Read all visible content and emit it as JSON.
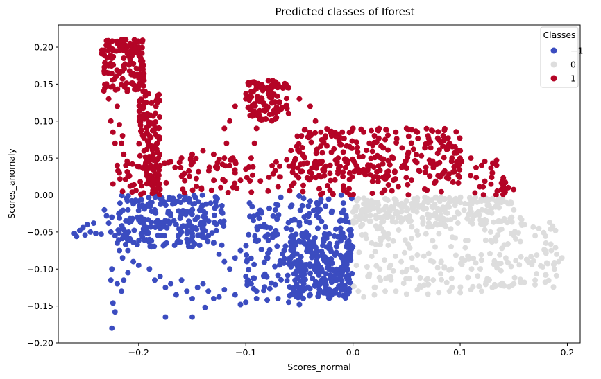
{
  "chart_data": {
    "type": "scatter",
    "title": "Predicted classes of Iforest",
    "xlabel": "Scores_normal",
    "ylabel": "Scores_anomaly",
    "xlim": [
      -0.275,
      0.212
    ],
    "ylim": [
      -0.2,
      0.23
    ],
    "xticks": [
      {
        "value": -0.2,
        "label": "−0.2"
      },
      {
        "value": -0.1,
        "label": "−0.1"
      },
      {
        "value": 0.0,
        "label": "0.0"
      },
      {
        "value": 0.1,
        "label": "0.1"
      },
      {
        "value": 0.2,
        "label": "0.2"
      }
    ],
    "yticks": [
      {
        "value": -0.2,
        "label": "−0.20"
      },
      {
        "value": -0.15,
        "label": "−0.15"
      },
      {
        "value": -0.1,
        "label": "−0.10"
      },
      {
        "value": -0.05,
        "label": "−0.05"
      },
      {
        "value": 0.0,
        "label": "0.00"
      },
      {
        "value": 0.05,
        "label": "0.05"
      },
      {
        "value": 0.1,
        "label": "0.10"
      },
      {
        "value": 0.15,
        "label": "0.15"
      },
      {
        "value": 0.2,
        "label": "0.20"
      }
    ],
    "grid": false,
    "legend": {
      "title": "Classes",
      "placement": "top-right",
      "entries": [
        {
          "label": "−1",
          "color": "#3b4cc0"
        },
        {
          "label": "0",
          "color": "#dddddd"
        },
        {
          "label": "1",
          "color": "#b40426"
        }
      ]
    },
    "series": [
      {
        "name": "−1",
        "color": "#3b4cc0",
        "points": [
          [
            -0.26,
            -0.052
          ],
          [
            -0.258,
            -0.056
          ],
          [
            -0.255,
            -0.048
          ],
          [
            -0.252,
            -0.044
          ],
          [
            -0.25,
            -0.054
          ],
          [
            -0.248,
            -0.04
          ],
          [
            -0.245,
            -0.05
          ],
          [
            -0.242,
            -0.038
          ],
          [
            -0.24,
            -0.052
          ],
          [
            -0.235,
            -0.053
          ],
          [
            -0.232,
            -0.02
          ],
          [
            -0.23,
            -0.028
          ],
          [
            -0.228,
            -0.038
          ],
          [
            -0.226,
            -0.05
          ],
          [
            -0.225,
            -0.03
          ],
          [
            -0.222,
            -0.055
          ],
          [
            -0.22,
            -0.065
          ],
          [
            -0.218,
            -0.075
          ],
          [
            -0.215,
            -0.045
          ],
          [
            -0.212,
            -0.035
          ],
          [
            -0.21,
            -0.02
          ],
          [
            -0.205,
            -0.012
          ],
          [
            -0.2,
            -0.008
          ],
          [
            -0.198,
            -0.03
          ],
          [
            -0.195,
            -0.04
          ],
          [
            -0.192,
            -0.052
          ],
          [
            -0.19,
            -0.06
          ],
          [
            -0.188,
            -0.07
          ],
          [
            -0.185,
            -0.02
          ],
          [
            -0.182,
            -0.035
          ],
          [
            -0.18,
            -0.045
          ],
          [
            -0.176,
            -0.055
          ],
          [
            -0.174,
            -0.065
          ],
          [
            -0.17,
            -0.028
          ],
          [
            -0.165,
            -0.04
          ],
          [
            -0.16,
            -0.05
          ],
          [
            -0.155,
            -0.06
          ],
          [
            -0.15,
            -0.07
          ],
          [
            -0.145,
            -0.03
          ],
          [
            -0.14,
            -0.045
          ],
          [
            -0.135,
            -0.055
          ],
          [
            -0.13,
            -0.065
          ],
          [
            -0.125,
            -0.08
          ],
          [
            -0.12,
            -0.09
          ],
          [
            -0.115,
            -0.1
          ],
          [
            -0.11,
            -0.085
          ],
          [
            -0.105,
            -0.075
          ],
          [
            -0.1,
            -0.11
          ],
          [
            -0.095,
            -0.12
          ],
          [
            -0.09,
            -0.13
          ],
          [
            -0.225,
            -0.1
          ],
          [
            -0.22,
            -0.12
          ],
          [
            -0.216,
            -0.13
          ],
          [
            -0.214,
            -0.115
          ],
          [
            -0.21,
            -0.105
          ],
          [
            -0.2,
            -0.095
          ],
          [
            -0.19,
            -0.1
          ],
          [
            -0.185,
            -0.115
          ],
          [
            -0.18,
            -0.11
          ],
          [
            -0.175,
            -0.125
          ],
          [
            -0.17,
            -0.12
          ],
          [
            -0.165,
            -0.135
          ],
          [
            -0.16,
            -0.115
          ],
          [
            -0.155,
            -0.13
          ],
          [
            -0.15,
            -0.14
          ],
          [
            -0.145,
            -0.125
          ],
          [
            -0.14,
            -0.12
          ],
          [
            -0.135,
            -0.13
          ],
          [
            -0.13,
            -0.14
          ],
          [
            -0.125,
            -0.138
          ],
          [
            -0.12,
            -0.128
          ],
          [
            -0.11,
            -0.135
          ],
          [
            -0.105,
            -0.148
          ],
          [
            -0.1,
            -0.145
          ],
          [
            -0.09,
            -0.14
          ],
          [
            -0.08,
            -0.142
          ],
          [
            -0.07,
            -0.14
          ],
          [
            -0.06,
            -0.145
          ],
          [
            -0.05,
            -0.148
          ],
          [
            -0.04,
            -0.135
          ],
          [
            -0.224,
            -0.146
          ],
          [
            -0.222,
            -0.158
          ],
          [
            -0.225,
            -0.18
          ],
          [
            -0.175,
            -0.165
          ],
          [
            -0.15,
            -0.165
          ],
          [
            -0.138,
            -0.152
          ],
          [
            -0.226,
            -0.115
          ],
          [
            -0.21,
            -0.075
          ],
          [
            -0.215,
            -0.085
          ],
          [
            -0.205,
            -0.09
          ]
        ],
        "dense_regions": [
          {
            "x": [
              -0.22,
              -0.12
            ],
            "y": [
              -0.07,
              0.0
            ]
          },
          {
            "x": [
              -0.1,
              0.0
            ],
            "y": [
              -0.13,
              0.0
            ]
          },
          {
            "x": [
              -0.06,
              0.0
            ],
            "y": [
              -0.14,
              -0.05
            ]
          }
        ]
      },
      {
        "name": "0",
        "color": "#dddddd",
        "points": [
          [
            0.005,
            -0.005
          ],
          [
            0.01,
            -0.012
          ],
          [
            0.015,
            -0.02
          ],
          [
            0.02,
            -0.01
          ],
          [
            0.03,
            -0.005
          ],
          [
            0.04,
            -0.012
          ],
          [
            0.05,
            -0.008
          ],
          [
            0.06,
            -0.004
          ],
          [
            0.07,
            -0.01
          ],
          [
            0.08,
            -0.006
          ],
          [
            0.09,
            -0.004
          ],
          [
            0.1,
            -0.01
          ],
          [
            0.11,
            -0.006
          ],
          [
            0.12,
            -0.008
          ],
          [
            0.13,
            -0.005
          ],
          [
            0.14,
            -0.008
          ],
          [
            0.145,
            -0.012
          ],
          [
            0.15,
            -0.02
          ],
          [
            0.16,
            -0.04
          ],
          [
            0.17,
            -0.055
          ],
          [
            0.18,
            -0.065
          ],
          [
            0.185,
            -0.075
          ],
          [
            0.19,
            -0.08
          ],
          [
            0.192,
            -0.09
          ],
          [
            0.195,
            -0.085
          ],
          [
            0.188,
            -0.1
          ],
          [
            0.18,
            -0.108
          ],
          [
            0.17,
            -0.115
          ],
          [
            0.16,
            -0.118
          ],
          [
            0.15,
            -0.12
          ],
          [
            0.14,
            -0.122
          ],
          [
            0.13,
            -0.125
          ],
          [
            0.12,
            -0.13
          ],
          [
            0.11,
            -0.128
          ],
          [
            0.1,
            -0.132
          ],
          [
            0.09,
            -0.13
          ],
          [
            0.08,
            -0.132
          ],
          [
            0.07,
            -0.134
          ],
          [
            0.06,
            -0.128
          ],
          [
            0.05,
            -0.134
          ],
          [
            0.04,
            -0.13
          ],
          [
            0.03,
            -0.13
          ],
          [
            0.02,
            -0.135
          ],
          [
            0.01,
            -0.138
          ],
          [
            0.005,
            -0.13
          ],
          [
            0.015,
            -0.11
          ],
          [
            0.025,
            -0.1
          ],
          [
            0.035,
            -0.095
          ],
          [
            0.045,
            -0.09
          ],
          [
            0.055,
            -0.085
          ]
        ],
        "dense_regions": [
          {
            "x": [
              0.0,
              0.19
            ],
            "y": [
              -0.125,
              -0.03
            ]
          },
          {
            "x": [
              0.0,
              0.15
            ],
            "y": [
              -0.04,
              -0.003
            ]
          }
        ]
      },
      {
        "name": "1",
        "color": "#b40426",
        "points": [
          [
            -0.232,
            0.165
          ],
          [
            -0.23,
            0.15
          ],
          [
            -0.228,
            0.175
          ],
          [
            -0.225,
            0.185
          ],
          [
            -0.222,
            0.195
          ],
          [
            -0.22,
            0.205
          ],
          [
            -0.216,
            0.21
          ],
          [
            -0.212,
            0.21
          ],
          [
            -0.208,
            0.205
          ],
          [
            -0.204,
            0.21
          ],
          [
            -0.2,
            0.2
          ],
          [
            -0.198,
            0.185
          ],
          [
            -0.196,
            0.17
          ],
          [
            -0.195,
            0.155
          ],
          [
            -0.194,
            0.14
          ],
          [
            -0.193,
            0.125
          ],
          [
            -0.192,
            0.11
          ],
          [
            -0.19,
            0.095
          ],
          [
            -0.19,
            0.08
          ],
          [
            -0.188,
            0.065
          ],
          [
            -0.186,
            0.05
          ],
          [
            -0.186,
            0.035
          ],
          [
            -0.185,
            0.02
          ],
          [
            -0.184,
            0.005
          ],
          [
            -0.228,
            0.13
          ],
          [
            -0.226,
            0.1
          ],
          [
            -0.224,
            0.085
          ],
          [
            -0.222,
            0.07
          ],
          [
            -0.22,
            0.12
          ],
          [
            -0.218,
            0.095
          ],
          [
            -0.216,
            0.07
          ],
          [
            -0.214,
            0.055
          ],
          [
            -0.212,
            0.04
          ],
          [
            -0.21,
            0.025
          ],
          [
            -0.208,
            0.012
          ],
          [
            -0.206,
            0.004
          ],
          [
            -0.224,
            0.015
          ],
          [
            -0.22,
            0.04
          ],
          [
            -0.218,
            0.03
          ],
          [
            -0.215,
            0.08
          ],
          [
            -0.18,
            0.04
          ],
          [
            -0.17,
            0.045
          ],
          [
            -0.16,
            0.05
          ],
          [
            -0.15,
            0.055
          ],
          [
            -0.14,
            0.06
          ],
          [
            -0.13,
            0.055
          ],
          [
            -0.12,
            0.05
          ],
          [
            -0.115,
            0.04
          ],
          [
            -0.11,
            0.03
          ],
          [
            -0.105,
            0.02
          ],
          [
            -0.1,
            0.035
          ],
          [
            -0.095,
            0.05
          ],
          [
            -0.092,
            0.07
          ],
          [
            -0.09,
            0.09
          ],
          [
            -0.088,
            0.11
          ],
          [
            -0.085,
            0.13
          ],
          [
            -0.08,
            0.145
          ],
          [
            -0.07,
            0.15
          ],
          [
            -0.06,
            0.145
          ],
          [
            -0.05,
            0.13
          ],
          [
            -0.04,
            0.12
          ],
          [
            -0.035,
            0.1
          ],
          [
            -0.03,
            0.085
          ],
          [
            -0.02,
            0.08
          ],
          [
            -0.01,
            0.085
          ],
          [
            0.0,
            0.09
          ],
          [
            0.01,
            0.085
          ],
          [
            0.02,
            0.08
          ],
          [
            0.03,
            0.075
          ],
          [
            0.04,
            0.085
          ],
          [
            0.05,
            0.09
          ],
          [
            0.06,
            0.085
          ],
          [
            0.07,
            0.08
          ],
          [
            0.08,
            0.075
          ],
          [
            0.09,
            0.07
          ],
          [
            0.1,
            0.06
          ],
          [
            0.11,
            0.05
          ],
          [
            0.12,
            0.04
          ],
          [
            0.13,
            0.03
          ],
          [
            0.14,
            0.02
          ],
          [
            0.145,
            0.01
          ],
          [
            0.142,
            0.004
          ],
          [
            -0.11,
            0.12
          ],
          [
            -0.115,
            0.1
          ],
          [
            -0.12,
            0.09
          ],
          [
            -0.118,
            0.07
          ],
          [
            -0.112,
            0.05
          ],
          [
            -0.1,
            0.13
          ],
          [
            -0.095,
            0.14
          ],
          [
            -0.075,
            0.155
          ]
        ],
        "dense_regions": [
          {
            "x": [
              -0.235,
              -0.195
            ],
            "y": [
              0.14,
              0.21
            ]
          },
          {
            "x": [
              -0.2,
              -0.18
            ],
            "y": [
              0.0,
              0.14
            ]
          },
          {
            "x": [
              -0.22,
              0.15
            ],
            "y": [
              0.0,
              0.05
            ]
          },
          {
            "x": [
              -0.1,
              -0.06
            ],
            "y": [
              0.1,
              0.155
            ]
          },
          {
            "x": [
              -0.06,
              0.1
            ],
            "y": [
              0.02,
              0.09
            ]
          }
        ]
      }
    ]
  }
}
